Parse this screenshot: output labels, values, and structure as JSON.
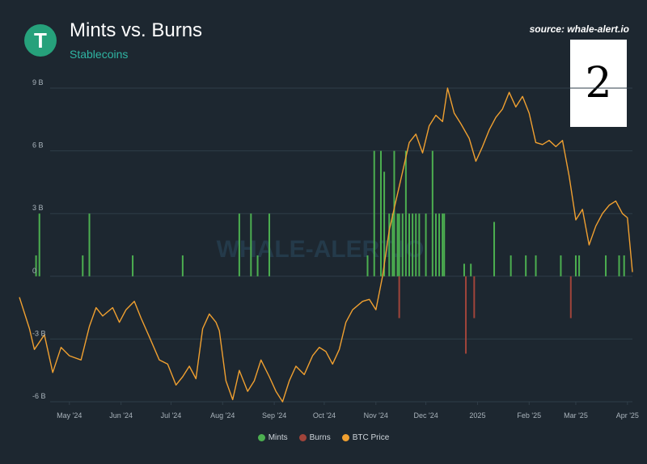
{
  "header": {
    "logo_glyph": "T",
    "title": "Mints vs. Burns",
    "subtitle": "Stablecoins",
    "source": "source: whale-alert.io",
    "watermark": "WHALE-ALERT.IO",
    "badge": "2"
  },
  "colors": {
    "background": "#1d2730",
    "mints": "#4caf50",
    "burns": "#a0443a",
    "btc": "#f0a030",
    "grid": "#2f3d48",
    "axis_text": "#aab4bc"
  },
  "chart_data": {
    "type": "bar",
    "title": "Mints vs. Burns",
    "subtitle": "Stablecoins",
    "ylim": [
      -6,
      9
    ],
    "y_tick_labels": [
      {
        "value": 9,
        "label": "9 B"
      },
      {
        "value": 6,
        "label": "6 B"
      },
      {
        "value": 3,
        "label": "3 B"
      },
      {
        "value": 0,
        "label": "0"
      },
      {
        "value": -3,
        "label": "-3 B"
      },
      {
        "value": -6,
        "label": "-6 B"
      }
    ],
    "x_range_days": [
      0,
      368
    ],
    "x_ticks": [
      {
        "day": 30,
        "label": "May '24"
      },
      {
        "day": 61,
        "label": "Jun '24"
      },
      {
        "day": 91,
        "label": "Jul '24"
      },
      {
        "day": 122,
        "label": "Aug '24"
      },
      {
        "day": 153,
        "label": "Sep '24"
      },
      {
        "day": 183,
        "label": "Oct '24"
      },
      {
        "day": 214,
        "label": "Nov '24"
      },
      {
        "day": 244,
        "label": "Dec '24"
      },
      {
        "day": 275,
        "label": "2025"
      },
      {
        "day": 306,
        "label": "Feb '25"
      },
      {
        "day": 334,
        "label": "Mar '25"
      },
      {
        "day": 365,
        "label": "Apr '25"
      }
    ],
    "grid": true,
    "legend": [
      "Mints",
      "Burns",
      "BTC Price"
    ],
    "legend_position": "bottom",
    "series": [
      {
        "name": "Mints",
        "values": [
          [
            10,
            1
          ],
          [
            12,
            3
          ],
          [
            38,
            1
          ],
          [
            42,
            3
          ],
          [
            68,
            1
          ],
          [
            98,
            1
          ],
          [
            132,
            3
          ],
          [
            139,
            3
          ],
          [
            143,
            1
          ],
          [
            150,
            3
          ],
          [
            209,
            1
          ],
          [
            213,
            6
          ],
          [
            217,
            6
          ],
          [
            219,
            5
          ],
          [
            222,
            3
          ],
          [
            224,
            3
          ],
          [
            225,
            6
          ],
          [
            227,
            3
          ],
          [
            228,
            3
          ],
          [
            230,
            3
          ],
          [
            232,
            6
          ],
          [
            234,
            3
          ],
          [
            236,
            3
          ],
          [
            238,
            3
          ],
          [
            240,
            3
          ],
          [
            244,
            3
          ],
          [
            248,
            6
          ],
          [
            250,
            3
          ],
          [
            252,
            3
          ],
          [
            254,
            3
          ],
          [
            255,
            3
          ],
          [
            267,
            0.6
          ],
          [
            271,
            0.6
          ],
          [
            285,
            2.6
          ],
          [
            295,
            1
          ],
          [
            304,
            1
          ],
          [
            310,
            1
          ],
          [
            325,
            1
          ],
          [
            334,
            1
          ],
          [
            336,
            1
          ],
          [
            352,
            1
          ],
          [
            360,
            1
          ],
          [
            363,
            1
          ]
        ]
      },
      {
        "name": "Burns",
        "values": [
          [
            228,
            -2
          ],
          [
            268,
            -3.7
          ],
          [
            273,
            -2
          ],
          [
            331,
            -2
          ]
        ]
      },
      {
        "name": "BTC Price",
        "values": [
          [
            0,
            -1
          ],
          [
            6,
            -2.5
          ],
          [
            9,
            -3.5
          ],
          [
            15,
            -2.8
          ],
          [
            20,
            -4.6
          ],
          [
            25,
            -3.4
          ],
          [
            30,
            -3.8
          ],
          [
            37,
            -4
          ],
          [
            42,
            -2.4
          ],
          [
            46,
            -1.5
          ],
          [
            50,
            -1.9
          ],
          [
            56,
            -1.5
          ],
          [
            60,
            -2.2
          ],
          [
            64,
            -1.6
          ],
          [
            69,
            -1.2
          ],
          [
            73,
            -2
          ],
          [
            78,
            -2.9
          ],
          [
            84,
            -4
          ],
          [
            89,
            -4.2
          ],
          [
            94,
            -5.2
          ],
          [
            98,
            -4.8
          ],
          [
            102,
            -4.3
          ],
          [
            106,
            -4.9
          ],
          [
            110,
            -2.5
          ],
          [
            114,
            -1.8
          ],
          [
            118,
            -2.2
          ],
          [
            120,
            -2.6
          ],
          [
            124,
            -5
          ],
          [
            128,
            -5.9
          ],
          [
            132,
            -4.5
          ],
          [
            137,
            -5.5
          ],
          [
            141,
            -5
          ],
          [
            145,
            -4
          ],
          [
            150,
            -4.8
          ],
          [
            154,
            -5.5
          ],
          [
            158,
            -6
          ],
          [
            162,
            -5
          ],
          [
            166,
            -4.3
          ],
          [
            171,
            -4.7
          ],
          [
            176,
            -3.8
          ],
          [
            180,
            -3.4
          ],
          [
            184,
            -3.6
          ],
          [
            188,
            -4.2
          ],
          [
            192,
            -3.5
          ],
          [
            196,
            -2.2
          ],
          [
            200,
            -1.6
          ],
          [
            206,
            -1.2
          ],
          [
            210,
            -1.1
          ],
          [
            214,
            -1.6
          ],
          [
            218,
            0
          ],
          [
            222,
            2.2
          ],
          [
            226,
            3.6
          ],
          [
            230,
            5
          ],
          [
            234,
            6.4
          ],
          [
            238,
            6.8
          ],
          [
            242,
            5.9
          ],
          [
            246,
            7.2
          ],
          [
            250,
            7.7
          ],
          [
            254,
            7.4
          ],
          [
            257,
            9
          ],
          [
            261,
            7.8
          ],
          [
            265,
            7.3
          ],
          [
            270,
            6.6
          ],
          [
            274,
            5.5
          ],
          [
            278,
            6.2
          ],
          [
            282,
            7
          ],
          [
            286,
            7.6
          ],
          [
            290,
            8
          ],
          [
            294,
            8.8
          ],
          [
            298,
            8.1
          ],
          [
            302,
            8.6
          ],
          [
            306,
            7.8
          ],
          [
            310,
            6.4
          ],
          [
            314,
            6.3
          ],
          [
            318,
            6.5
          ],
          [
            322,
            6.2
          ],
          [
            326,
            6.5
          ],
          [
            330,
            4.8
          ],
          [
            334,
            2.7
          ],
          [
            338,
            3.2
          ],
          [
            342,
            1.5
          ],
          [
            346,
            2.4
          ],
          [
            350,
            3
          ],
          [
            354,
            3.4
          ],
          [
            358,
            3.6
          ],
          [
            362,
            3
          ],
          [
            365,
            2.8
          ],
          [
            368,
            0.2
          ]
        ]
      }
    ]
  }
}
